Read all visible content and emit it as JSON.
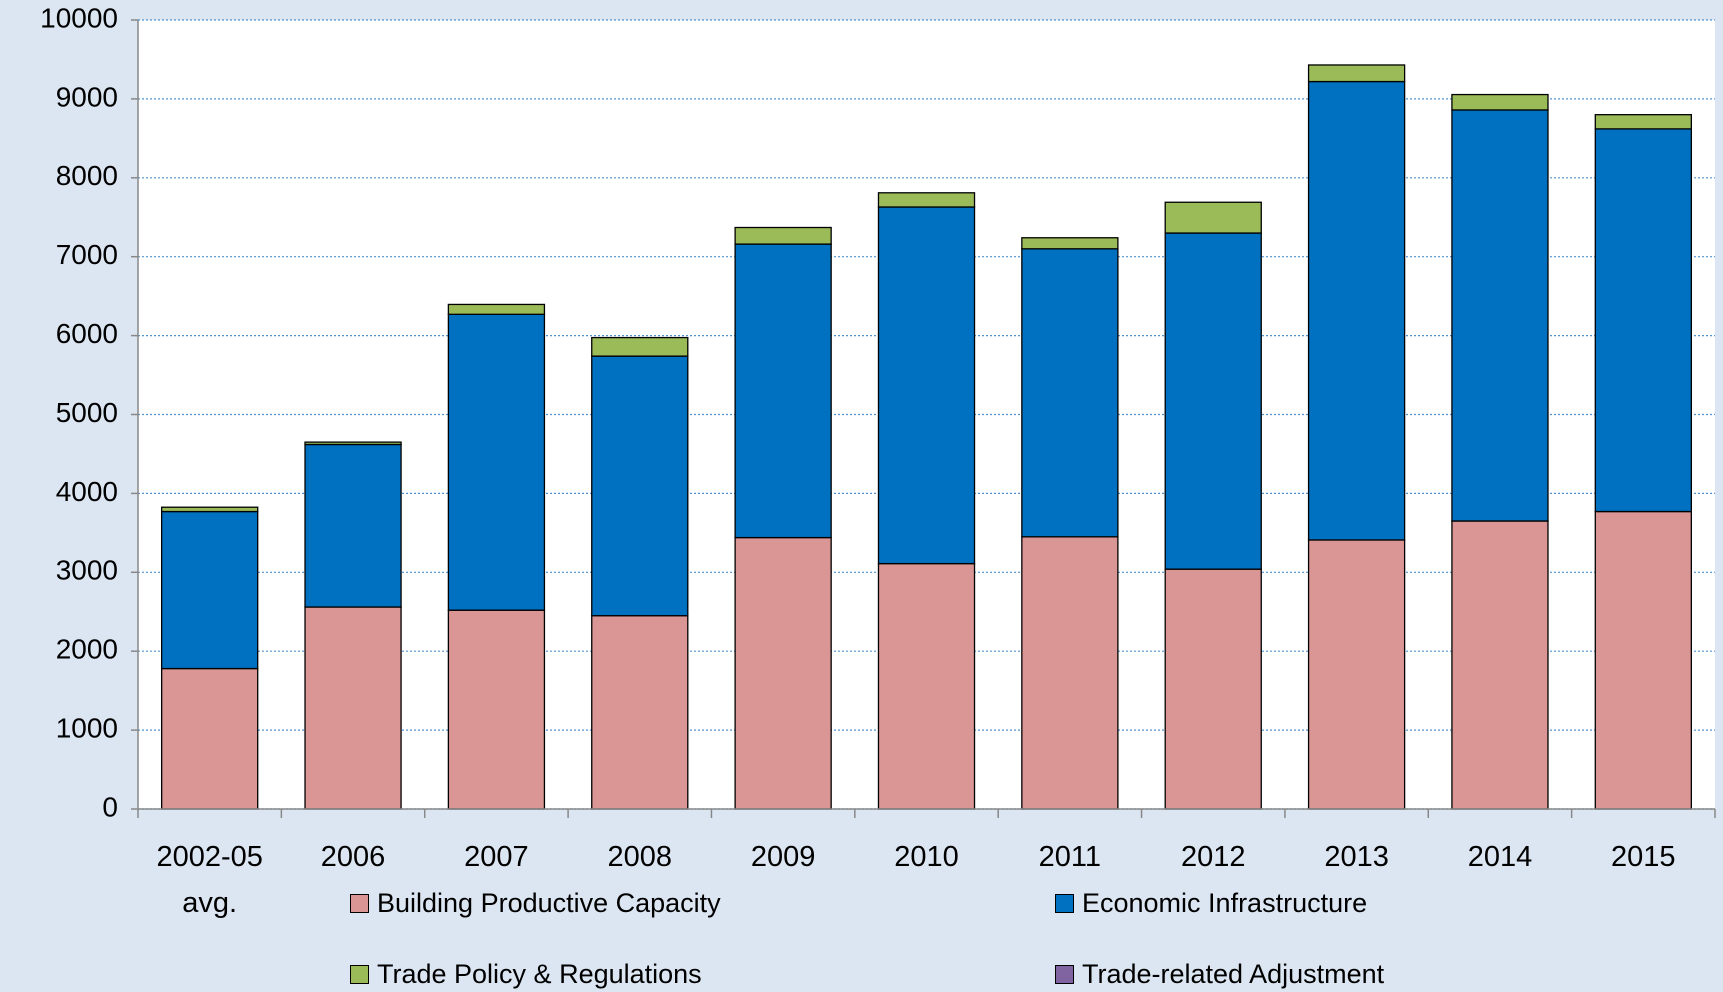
{
  "chart_data": {
    "type": "stacked_bar",
    "categories": [
      "2002-05 avg.",
      "2006",
      "2007",
      "2008",
      "2009",
      "2010",
      "2011",
      "2012",
      "2013",
      "2014",
      "2015"
    ],
    "series": [
      {
        "name": "Building Productive Capacity",
        "color": "#d99694",
        "values": [
          1780,
          2560,
          2520,
          2450,
          3440,
          3110,
          3450,
          3040,
          3410,
          3650,
          3770
        ]
      },
      {
        "name": "Economic Infrastructure",
        "color": "#0070c0",
        "values": [
          1990,
          2060,
          3750,
          3290,
          3720,
          4520,
          3650,
          4260,
          5810,
          5210,
          4850
        ]
      },
      {
        "name": "Trade Policy & Regulations",
        "color": "#9bbb59",
        "values": [
          55,
          30,
          125,
          235,
          210,
          180,
          140,
          390,
          210,
          195,
          180
        ]
      },
      {
        "name": "Trade-related Adjustment",
        "color": "#8064a2",
        "values": [
          0,
          0,
          0,
          0,
          0,
          0,
          0,
          0,
          0,
          0,
          0
        ]
      }
    ],
    "ylim": [
      0,
      10000
    ],
    "yticks": [
      0,
      1000,
      2000,
      3000,
      4000,
      5000,
      6000,
      7000,
      8000,
      9000,
      10000
    ],
    "grid": true
  }
}
